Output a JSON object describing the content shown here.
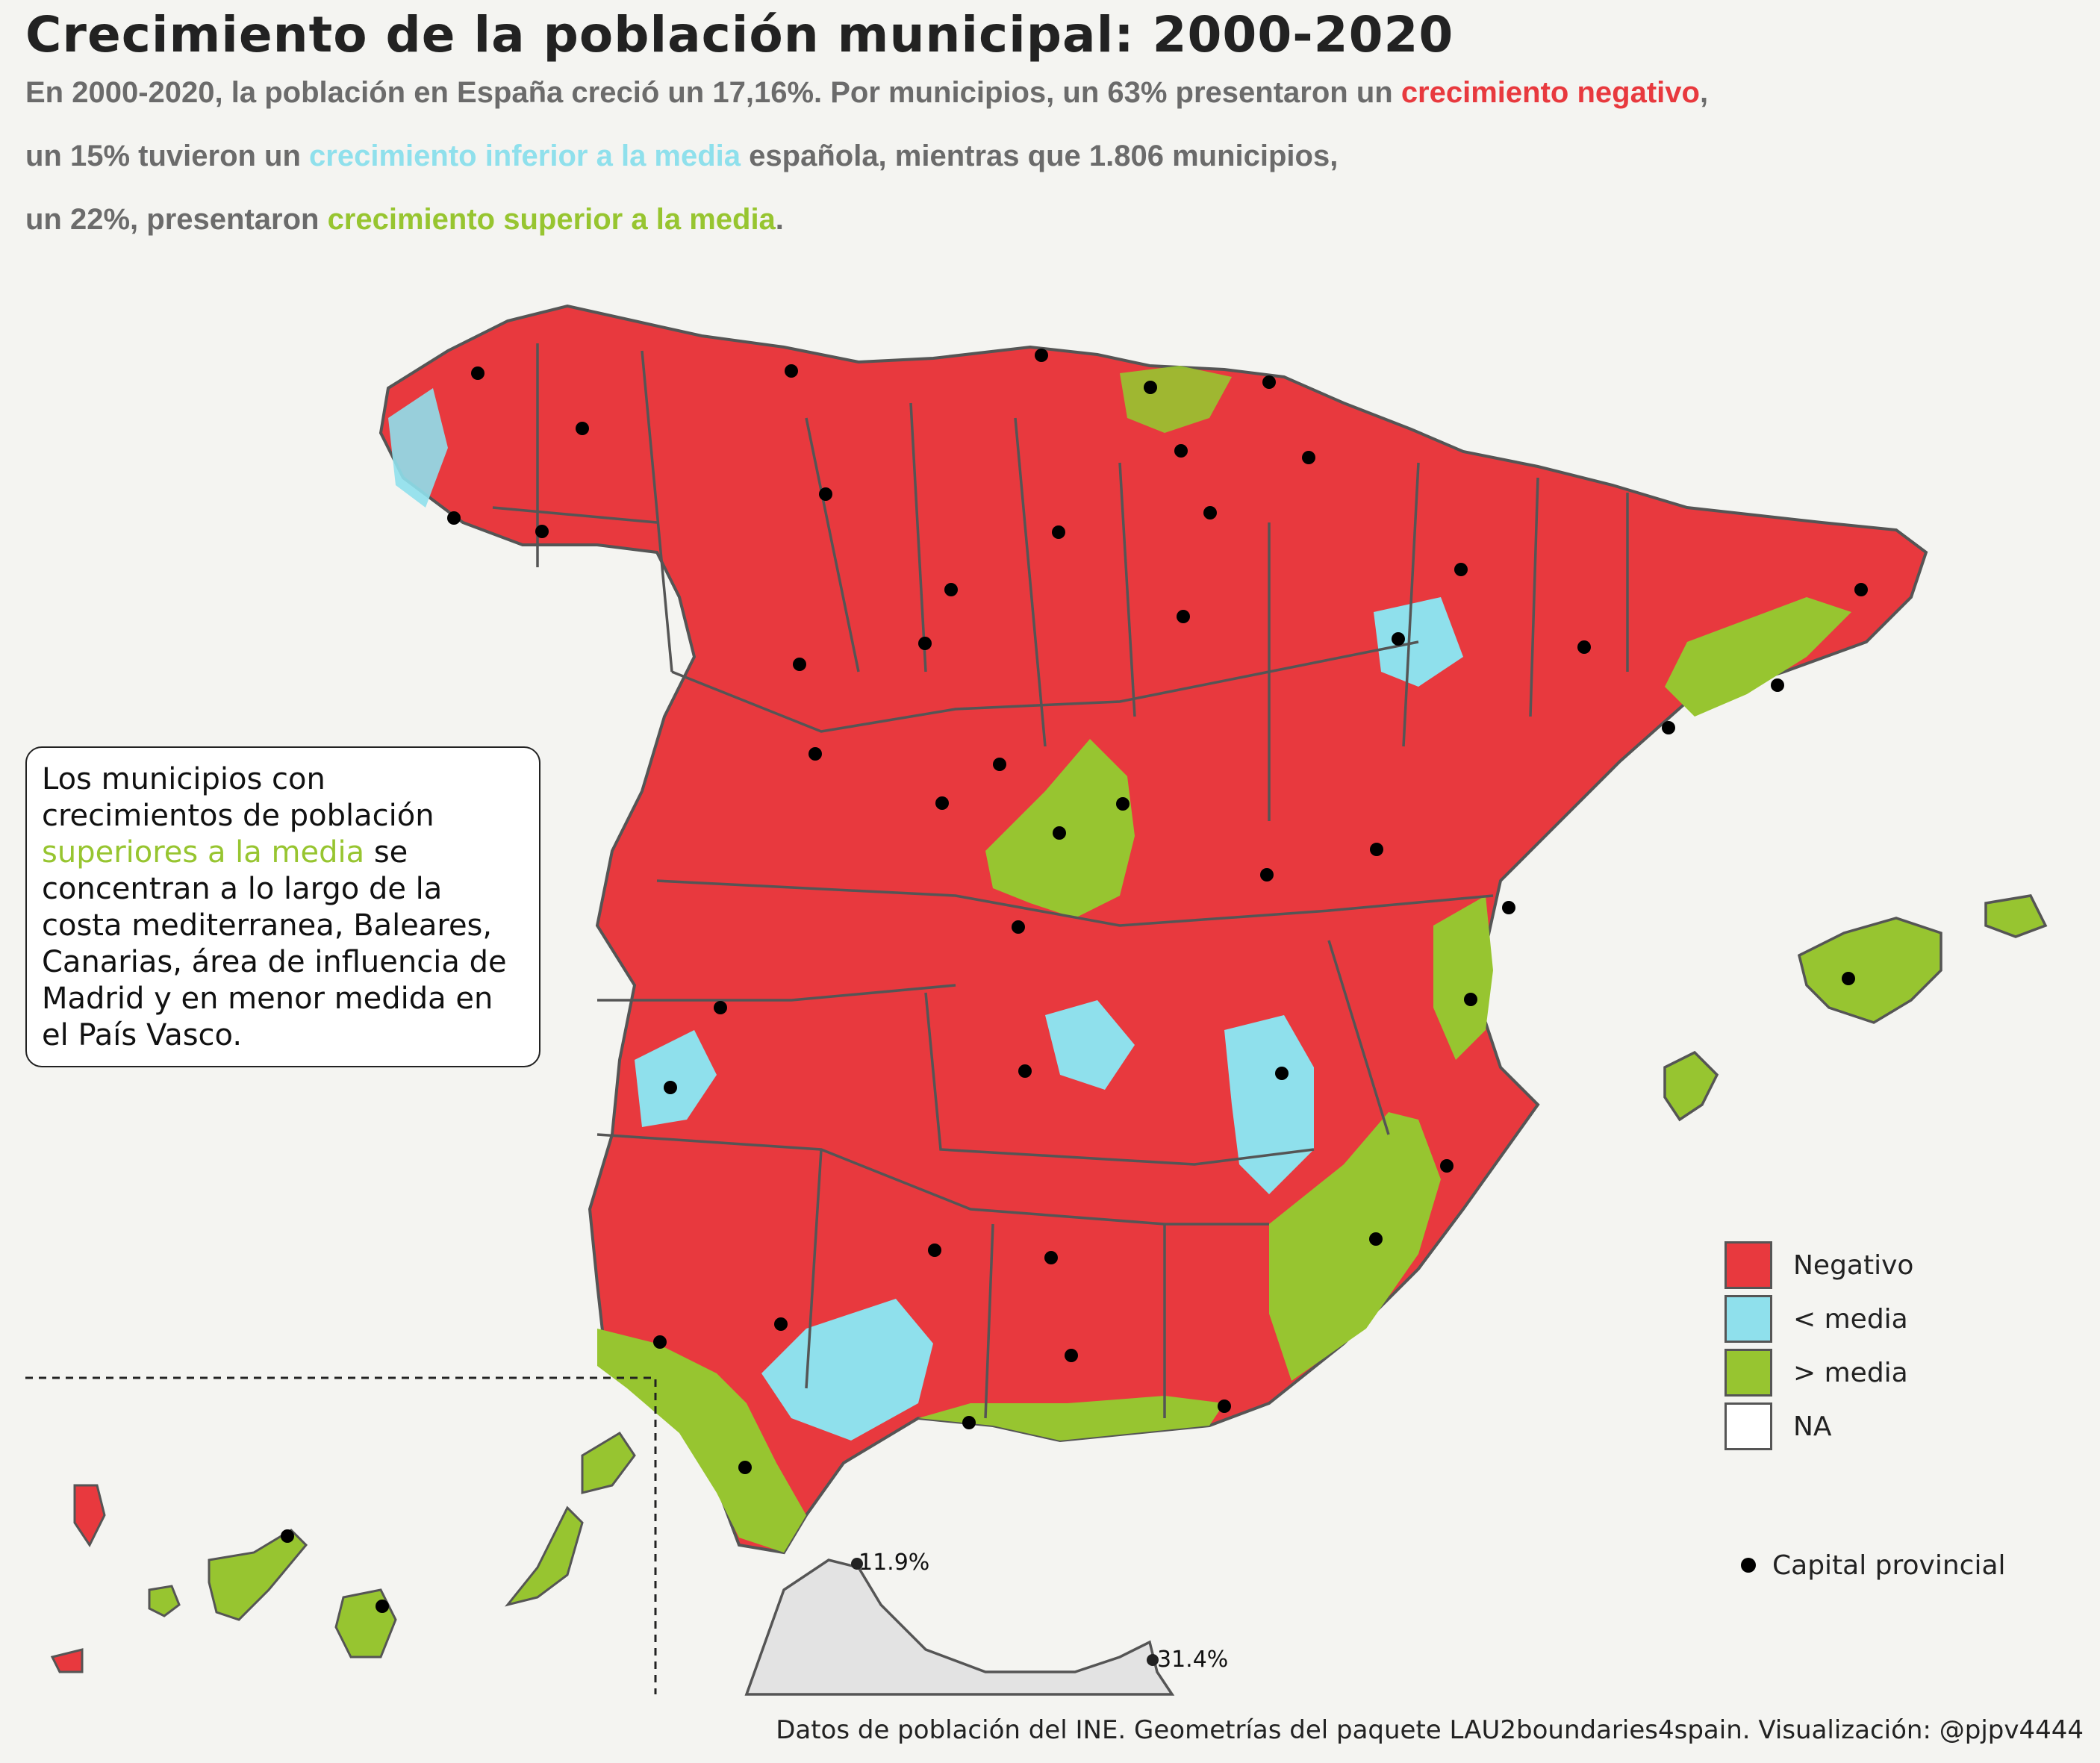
{
  "title": "Crecimiento de la población municipal: 2000-2020",
  "subtitle": {
    "line1_a": "En 2000-2020, la población en España creció un 17,16%. Por municipios, un 63% presentaron un ",
    "line1_hl": "crecimiento negativo",
    "line1_b": ",",
    "line2_a": "un 15% tuvieron un ",
    "line2_hl": "crecimiento inferior a la media",
    "line2_b": " española, mientras que 1.806 municipios,",
    "line3_a": "un 22%, presentaron ",
    "line3_hl": "crecimiento superior a la media",
    "line3_b": "."
  },
  "annotation": {
    "part1": "Los municipios con crecimientos de población ",
    "highlight": "superiores a la media",
    "part2": " se concentran a lo largo de la costa mediterranea, Baleares, Canarias, área de influencia de Madrid y en menor medida en el País Vasco."
  },
  "legend": {
    "items": [
      {
        "label": "Negativo",
        "color": "#e8393e"
      },
      {
        "label": "< media",
        "color": "#8fe0ec"
      },
      {
        "label": "> media",
        "color": "#97c530"
      },
      {
        "label": "NA",
        "color": "#ffffff"
      }
    ],
    "capital_label": "Capital provincial"
  },
  "enclaves": {
    "ceuta_pct": "11.9%",
    "melilla_pct": "31.4%"
  },
  "caption": "Datos de población del INE. Geometrías del paquete LAU2boundaries4spain. Visualización: @pjpv4444",
  "colors": {
    "negativo": "#e8393e",
    "inferior": "#8fe0ec",
    "superior": "#97c530",
    "na": "#ffffff",
    "border": "#555555"
  }
}
